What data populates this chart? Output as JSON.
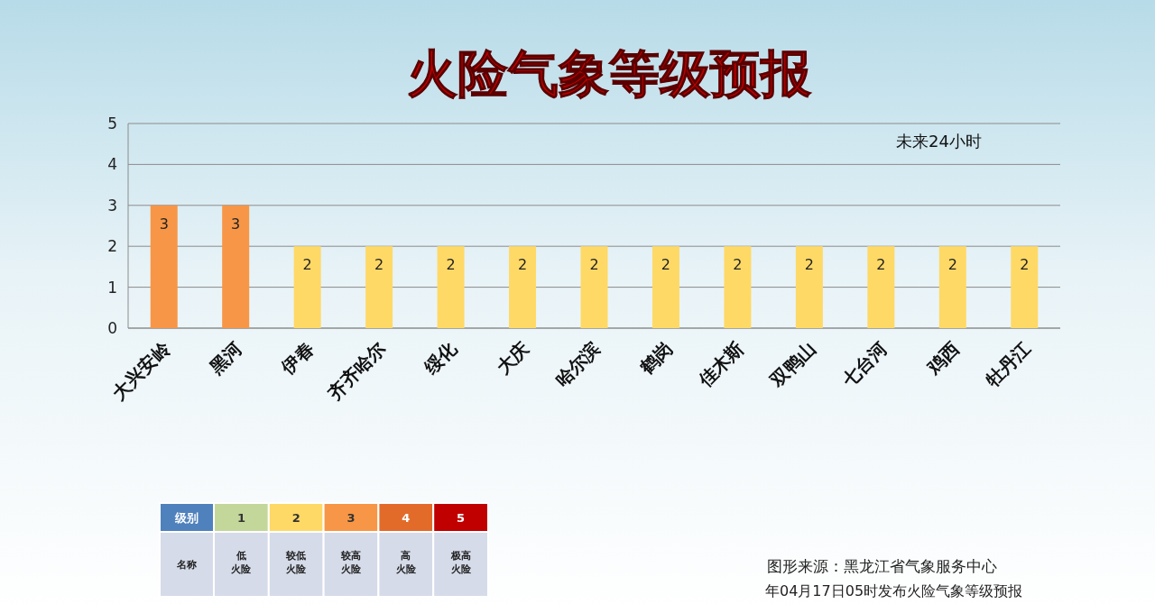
{
  "chart_data": [
    {
      "type": "bar",
      "title": "火险气象等级预报",
      "categories": [
        "大兴安岭",
        "黑河",
        "伊春",
        "齐齐哈尔",
        "绥化",
        "大庆",
        "哈尔滨",
        "鹤岗",
        "佳木斯",
        "双鸭山",
        "七台河",
        "鸡西",
        "牡丹江"
      ],
      "values": [
        3,
        3,
        2,
        2,
        2,
        2,
        2,
        2,
        2,
        2,
        2,
        2,
        2
      ],
      "colors": [
        "#f79646",
        "#f79646",
        "#ffd966",
        "#ffd966",
        "#ffd966",
        "#ffd966",
        "#ffd966",
        "#ffd966",
        "#ffd966",
        "#ffd966",
        "#ffd966",
        "#ffd966",
        "#ffd966"
      ],
      "ylim": [
        0,
        5
      ],
      "yticks": [
        0,
        1,
        2,
        3,
        4,
        5
      ],
      "grid": "y",
      "data_labels": true,
      "annotations": [
        "未来24小时",
        "图形来源：黑龙江省气象服务中心",
        "年04月17日05时发布火险气象等级预报"
      ]
    },
    {
      "type": "heatmap",
      "y_categories": [
        "级别"
      ],
      "xlabel": "名称",
      "categories": [
        "低火险",
        "较低火险",
        "较高火险",
        "高火险",
        "极高火险"
      ],
      "cells": [
        [
          1,
          2,
          3,
          4,
          5
        ]
      ],
      "colors": [
        "#c4d79b",
        "#ffd966",
        "#f79646",
        "#e26b2a",
        "#c00000"
      ],
      "data_labels": true
    }
  ]
}
